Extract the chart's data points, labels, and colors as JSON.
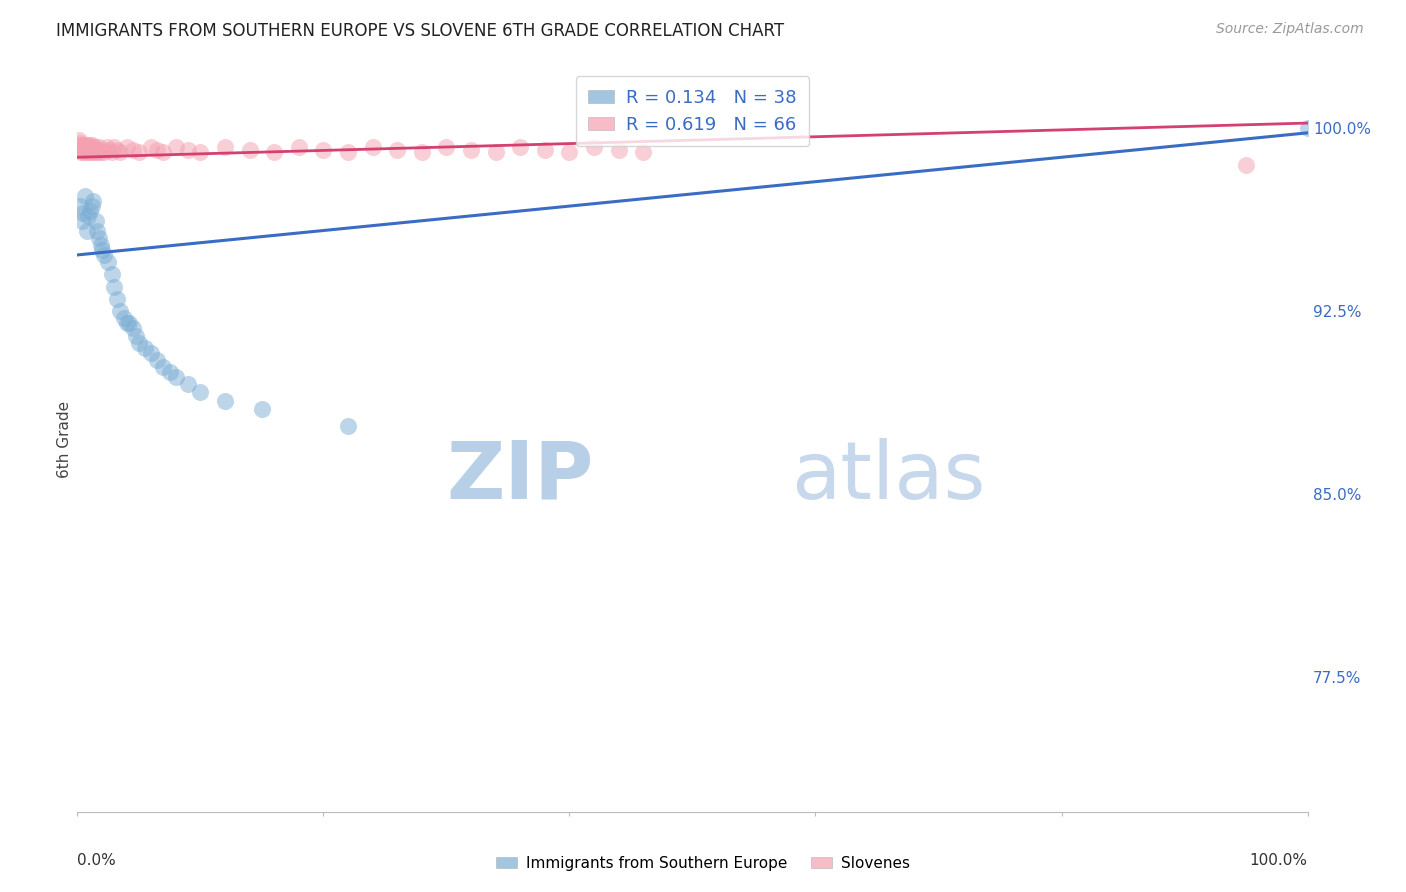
{
  "title": "IMMIGRANTS FROM SOUTHERN EUROPE VS SLOVENE 6TH GRADE CORRELATION CHART",
  "source": "Source: ZipAtlas.com",
  "ylabel": "6th Grade",
  "ytick_labels": [
    "100.0%",
    "92.5%",
    "85.0%",
    "77.5%"
  ],
  "ytick_values": [
    1.0,
    0.925,
    0.85,
    0.775
  ],
  "xlim": [
    0.0,
    1.0
  ],
  "ylim": [
    0.72,
    1.025
  ],
  "legend_entry1": "R = 0.134   N = 38",
  "legend_entry2": "R = 0.619   N = 66",
  "blue_color": "#7BADD4",
  "pink_color": "#F4A0B0",
  "trendline_blue_color": "#3B6CC4",
  "trendline_pink_color": "#D44070",
  "blue_scatter_x": [
    0.002,
    0.004,
    0.005,
    0.006,
    0.008,
    0.009,
    0.01,
    0.012,
    0.013,
    0.015,
    0.016,
    0.018,
    0.019,
    0.02,
    0.022,
    0.025,
    0.028,
    0.03,
    0.032,
    0.035,
    0.038,
    0.04,
    0.042,
    0.045,
    0.048,
    0.05,
    0.055,
    0.06,
    0.065,
    0.07,
    0.075,
    0.08,
    0.09,
    0.1,
    0.12,
    0.15,
    0.22,
    1.0
  ],
  "blue_scatter_y": [
    0.968,
    0.962,
    0.965,
    0.972,
    0.958,
    0.964,
    0.966,
    0.968,
    0.97,
    0.962,
    0.958,
    0.955,
    0.952,
    0.95,
    0.948,
    0.945,
    0.94,
    0.935,
    0.93,
    0.925,
    0.922,
    0.92,
    0.92,
    0.918,
    0.915,
    0.912,
    0.91,
    0.908,
    0.905,
    0.902,
    0.9,
    0.898,
    0.895,
    0.892,
    0.888,
    0.885,
    0.878,
    1.0
  ],
  "pink_scatter_x": [
    0.001,
    0.002,
    0.002,
    0.003,
    0.003,
    0.004,
    0.004,
    0.005,
    0.005,
    0.006,
    0.006,
    0.007,
    0.007,
    0.008,
    0.008,
    0.009,
    0.009,
    0.01,
    0.01,
    0.011,
    0.011,
    0.012,
    0.012,
    0.013,
    0.014,
    0.015,
    0.016,
    0.017,
    0.018,
    0.019,
    0.02,
    0.022,
    0.024,
    0.026,
    0.028,
    0.03,
    0.032,
    0.035,
    0.04,
    0.045,
    0.05,
    0.06,
    0.065,
    0.07,
    0.08,
    0.09,
    0.1,
    0.12,
    0.14,
    0.16,
    0.18,
    0.2,
    0.22,
    0.24,
    0.26,
    0.28,
    0.3,
    0.32,
    0.34,
    0.36,
    0.38,
    0.4,
    0.42,
    0.44,
    0.46,
    0.95
  ],
  "pink_scatter_y": [
    0.995,
    0.992,
    0.994,
    0.99,
    0.993,
    0.991,
    0.993,
    0.99,
    0.992,
    0.991,
    0.993,
    0.99,
    0.992,
    0.991,
    0.993,
    0.99,
    0.992,
    0.991,
    0.993,
    0.99,
    0.992,
    0.991,
    0.993,
    0.99,
    0.992,
    0.99,
    0.991,
    0.99,
    0.992,
    0.99,
    0.991,
    0.99,
    0.992,
    0.991,
    0.99,
    0.992,
    0.991,
    0.99,
    0.992,
    0.991,
    0.99,
    0.992,
    0.991,
    0.99,
    0.992,
    0.991,
    0.99,
    0.992,
    0.991,
    0.99,
    0.992,
    0.991,
    0.99,
    0.992,
    0.991,
    0.99,
    0.992,
    0.991,
    0.99,
    0.992,
    0.991,
    0.99,
    0.992,
    0.991,
    0.99,
    0.985
  ],
  "blue_trend_x": [
    0.0,
    1.0
  ],
  "blue_trend_y": [
    0.948,
    0.998
  ],
  "pink_trend_x": [
    0.0,
    1.0
  ],
  "pink_trend_y": [
    0.988,
    1.002
  ],
  "watermark_zip": "ZIP",
  "watermark_atlas": "atlas",
  "watermark_zip_color": "#b8cfe8",
  "watermark_atlas_color": "#c8d8ec",
  "background_color": "#ffffff",
  "grid_color": "#d0d0d0"
}
